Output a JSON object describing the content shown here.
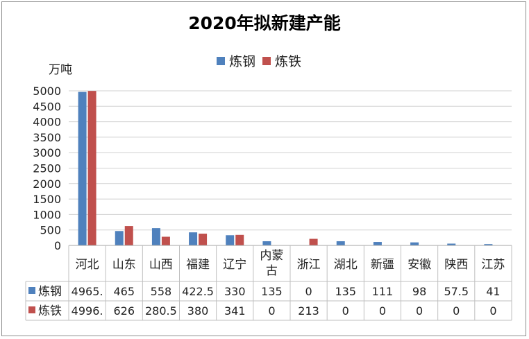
{
  "chart_data": {
    "type": "bar",
    "title": "2020年拟新建产能",
    "ylabel": "万吨",
    "ylim": [
      0,
      5000
    ],
    "yticks": [
      0,
      500,
      1000,
      1500,
      2000,
      2500,
      3000,
      3500,
      4000,
      4500,
      5000
    ],
    "categories": [
      "河北",
      "山东",
      "山西",
      "福建",
      "辽宁",
      "内蒙古",
      "浙江",
      "湖北",
      "新疆",
      "安徽",
      "陕西",
      "江苏"
    ],
    "category_lines": [
      [
        "河北"
      ],
      [
        "山东"
      ],
      [
        "山西"
      ],
      [
        "福建"
      ],
      [
        "辽宁"
      ],
      [
        "内蒙",
        "古"
      ],
      [
        "浙江"
      ],
      [
        "湖北"
      ],
      [
        "新疆"
      ],
      [
        "安徽"
      ],
      [
        "陕西"
      ],
      [
        "江苏"
      ]
    ],
    "series": [
      {
        "name": "炼钢",
        "color": "#4f81bd",
        "values": [
          4965,
          465,
          558,
          422.5,
          330,
          135,
          0,
          135,
          111,
          98,
          57.5,
          41
        ],
        "labels": [
          "4965.",
          "465",
          "558",
          "422.5",
          "330",
          "135",
          "0",
          "135",
          "111",
          "98",
          "57.5",
          "41"
        ]
      },
      {
        "name": "炼铁",
        "color": "#c0504d",
        "values": [
          4996,
          626,
          280.5,
          380,
          341,
          0,
          213,
          0,
          0,
          0,
          0,
          0
        ],
        "labels": [
          "4996.",
          "626",
          "280.5",
          "380",
          "341",
          "0",
          "213",
          "0",
          "0",
          "0",
          "0",
          "0"
        ]
      }
    ],
    "grid": true,
    "legend_position": "top"
  }
}
